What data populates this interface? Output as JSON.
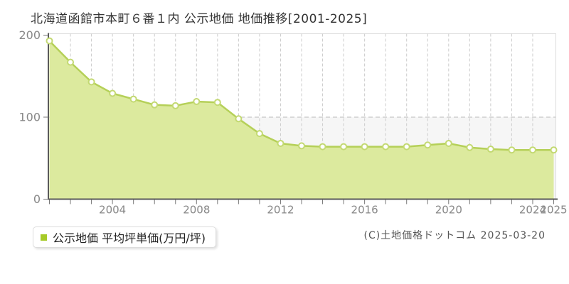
{
  "title": "北海道函館市本町６番１内 公示地価 地価推移[2001-2025]",
  "legend": {
    "label": "公示地価 平均坪単価(万円/坪)"
  },
  "copyright": "(C)土地価格ドットコム 2025-03-20",
  "chart_data": {
    "type": "area",
    "title": "北海道函館市本町６番１内 公示地価 地価推移[2001-2025]",
    "x": [
      2001,
      2002,
      2003,
      2004,
      2005,
      2006,
      2007,
      2008,
      2009,
      2010,
      2011,
      2012,
      2013,
      2014,
      2015,
      2016,
      2017,
      2018,
      2019,
      2020,
      2021,
      2022,
      2023,
      2024,
      2025
    ],
    "series": [
      {
        "name": "公示地価 平均坪単価(万円/坪)",
        "values": [
          193,
          167,
          143,
          129,
          122,
          115,
          114,
          119,
          118,
          98,
          80,
          68,
          65,
          64,
          64,
          64,
          64,
          64,
          66,
          68,
          63,
          61,
          60,
          60,
          60
        ]
      }
    ],
    "xlabel": "",
    "ylabel": "",
    "ylim": [
      0,
      200
    ],
    "yticks": [
      0,
      100,
      200
    ],
    "xtick_labels": [
      2004,
      2008,
      2012,
      2016,
      2020,
      2024,
      2025
    ],
    "grid": "dashed",
    "legend_position": "bottom-left",
    "colors": {
      "line": "#b5d058",
      "fill": "#dcea9e",
      "marker_fill": "#ffffff",
      "marker_stroke": "#c3d972",
      "band_lower": "#f6f6f6",
      "grid": "#cccccc",
      "grid_h": "#bbbbbb",
      "border": "#dddddd",
      "axis": "#5a5a5a",
      "tick": "#777777",
      "tick_label": "#888888",
      "legend_bullet": "#a6ca28"
    }
  }
}
